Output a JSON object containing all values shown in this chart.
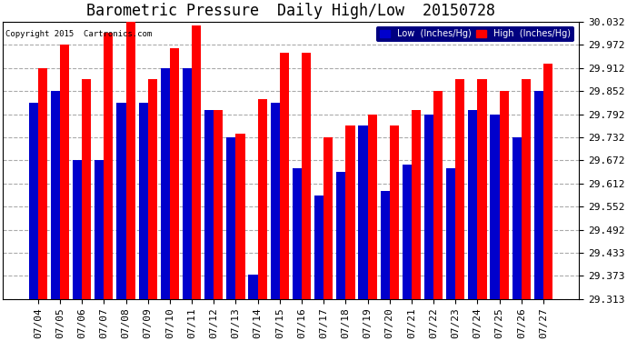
{
  "title": "Barometric Pressure  Daily High/Low  20150728",
  "copyright": "Copyright 2015  Cartronics.com",
  "dates": [
    "07/04",
    "07/05",
    "07/06",
    "07/07",
    "07/08",
    "07/09",
    "07/10",
    "07/11",
    "07/12",
    "07/13",
    "07/14",
    "07/15",
    "07/16",
    "07/17",
    "07/18",
    "07/19",
    "07/20",
    "07/21",
    "07/22",
    "07/23",
    "07/24",
    "07/25",
    "07/26",
    "07/27"
  ],
  "low_values": [
    29.822,
    29.852,
    29.672,
    29.672,
    29.822,
    29.822,
    29.912,
    29.912,
    29.802,
    29.732,
    29.375,
    29.822,
    29.652,
    29.582,
    29.642,
    29.762,
    29.592,
    29.662,
    29.792,
    29.652,
    29.802,
    29.792,
    29.732,
    29.852
  ],
  "high_values": [
    29.912,
    29.972,
    29.882,
    30.002,
    30.032,
    29.882,
    29.962,
    30.022,
    29.802,
    29.742,
    29.832,
    29.952,
    29.952,
    29.732,
    29.762,
    29.792,
    29.762,
    29.802,
    29.852,
    29.882,
    29.882,
    29.852,
    29.882,
    29.922
  ],
  "low_color": "#0000cc",
  "high_color": "#ff0000",
  "bg_color": "#ffffff",
  "plot_bg_color": "#ffffff",
  "ylim_min": 29.313,
  "ylim_max": 30.032,
  "yticks": [
    29.313,
    29.373,
    29.433,
    29.492,
    29.552,
    29.612,
    29.672,
    29.732,
    29.792,
    29.852,
    29.912,
    29.972,
    30.032
  ],
  "title_fontsize": 12,
  "tick_fontsize": 8,
  "legend_low_label": "Low  (Inches/Hg)",
  "legend_high_label": "High  (Inches/Hg)"
}
